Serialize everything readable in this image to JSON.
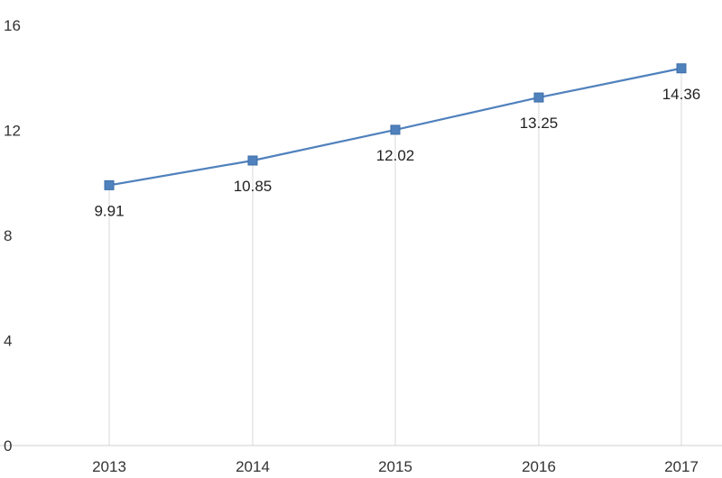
{
  "chart_data": {
    "type": "line",
    "categories": [
      "2013",
      "2014",
      "2015",
      "2016",
      "2017"
    ],
    "series": [
      {
        "values": [
          9.91,
          10.85,
          12.02,
          13.25,
          14.36
        ]
      }
    ],
    "data_labels": [
      "9.91",
      "10.85",
      "12.02",
      "13.25",
      "14.36"
    ],
    "yticks": [
      "0",
      "4",
      "8",
      "12",
      "16"
    ],
    "ylim": [
      0,
      16
    ],
    "line_color": "#4f81bd",
    "marker_color": "#4f81bd",
    "marker": "square",
    "grid": "vertical"
  }
}
